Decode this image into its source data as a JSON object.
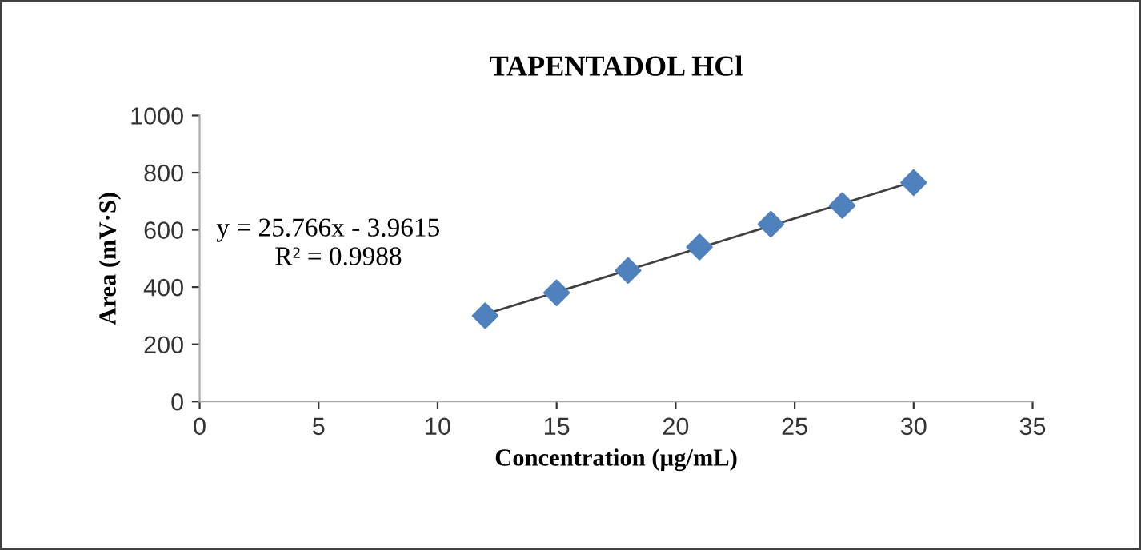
{
  "chart_data": {
    "type": "scatter",
    "title": "TAPENTADOL HCl",
    "xlabel": "Concentration (µg/mL)",
    "ylabel": "Area (mV·S)",
    "series": [
      {
        "color": "#4f81bd",
        "x": [
          12,
          15,
          18,
          21,
          24,
          27,
          30
        ],
        "values": [
          300,
          380,
          458,
          540,
          620,
          685,
          765
        ],
        "marker": "diamond"
      },
      {
        "type": "line",
        "color": "#404040",
        "x": [
          12,
          30
        ],
        "values": [
          305,
          769
        ]
      }
    ],
    "annotations": [
      "y = 25.766x - 3.9615",
      "R² = 0.9988"
    ],
    "xlim": [
      0,
      35
    ],
    "xticks": [
      0,
      5,
      10,
      15,
      20,
      25,
      30,
      35
    ],
    "ylim": [
      0,
      1000
    ],
    "yticks": [
      0,
      200,
      400,
      600,
      800,
      1000
    ],
    "grid": false,
    "legend": false
  }
}
